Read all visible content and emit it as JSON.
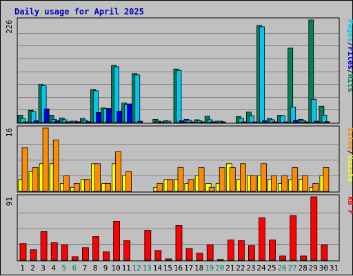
{
  "chart_data": {
    "type": "bar",
    "title": "Daily usage for April 2025",
    "days": [
      "1",
      "2",
      "3",
      "4",
      "5",
      "6",
      "7",
      "8",
      "9",
      "10",
      "11",
      "12",
      "13",
      "14",
      "15",
      "16",
      "17",
      "18",
      "19",
      "20",
      "21",
      "22",
      "23",
      "24",
      "25",
      "26",
      "27",
      "28",
      "29",
      "30",
      "31"
    ],
    "weekend_days": [
      5,
      6,
      12,
      13,
      19,
      20,
      26,
      27
    ],
    "panels": [
      {
        "id": "hits-files-pages",
        "ymax": 226,
        "right_label_parts": [
          "Pages",
          "/",
          "Files",
          "/",
          "Hits"
        ],
        "series": [
          {
            "name": "Hits",
            "color": "#00805c",
            "values": [
              16,
              27,
              84,
              16,
              10,
              3,
              9,
              73,
              32,
              126,
              43,
              108,
              0,
              7,
              4,
              118,
              7,
              6,
              14,
              3,
              0,
              13,
              23,
              214,
              9,
              16,
              164,
              7,
              226,
              36,
              0
            ]
          },
          {
            "name": "Files",
            "color": "#00c8f0",
            "values": [
              9,
              24,
              81,
              7,
              6,
              3,
              5,
              70,
              31,
              123,
              40,
              105,
              0,
              3,
              3,
              115,
              5,
              4,
              6,
              3,
              0,
              9,
              15,
              211,
              6,
              15,
              34,
              4,
              51,
              16,
              0
            ]
          },
          {
            "name": "Pages",
            "color": "#0000e0",
            "values": [
              1,
              4,
              30,
              4,
              1,
              1,
              2,
              22,
              31,
              25,
              41,
              3,
              0,
              1,
              0,
              4,
              1,
              1,
              1,
              1,
              0,
              1,
              1,
              4,
              1,
              1,
              5,
              1,
              3,
              2,
              0
            ]
          }
        ]
      },
      {
        "id": "visits-sites",
        "ymax": 16,
        "right_label_parts": [
          "Sites",
          "/",
          "Visits"
        ],
        "series": [
          {
            "name": "Visits",
            "color": "#ffff00",
            "values": [
              3,
              5,
              7,
              7,
              2,
              1,
              3,
              7,
              2,
              7,
              4,
              0,
              0,
              1,
              3,
              3,
              2,
              4,
              2,
              2,
              7,
              3,
              4,
              4,
              3,
              2,
              3,
              3,
              1,
              4,
              0
            ]
          },
          {
            "name": "Sites",
            "color": "#ff8c00",
            "values": [
              11,
              6,
              16,
              13,
              4,
              2,
              3,
              7,
              2,
              10,
              5,
              0,
              0,
              2,
              3,
              6,
              3,
              6,
              1,
              6,
              6,
              7,
              4,
              7,
              4,
              4,
              6,
              4,
              2,
              6,
              0
            ]
          }
        ]
      },
      {
        "id": "kbytes",
        "ymax": 91,
        "right_label_parts": [
          "kB",
          " F"
        ],
        "series": [
          {
            "name": "kB F",
            "color": "#ff0000",
            "values": [
              24,
              15,
              41,
              25,
              22,
              5,
              18,
              34,
              12,
              56,
              28,
              0,
              43,
              14,
              2,
              50,
              17,
              10,
              22,
              1,
              29,
              28,
              21,
              61,
              29,
              6,
              64,
              6,
              91,
              22,
              0
            ]
          }
        ]
      }
    ]
  }
}
